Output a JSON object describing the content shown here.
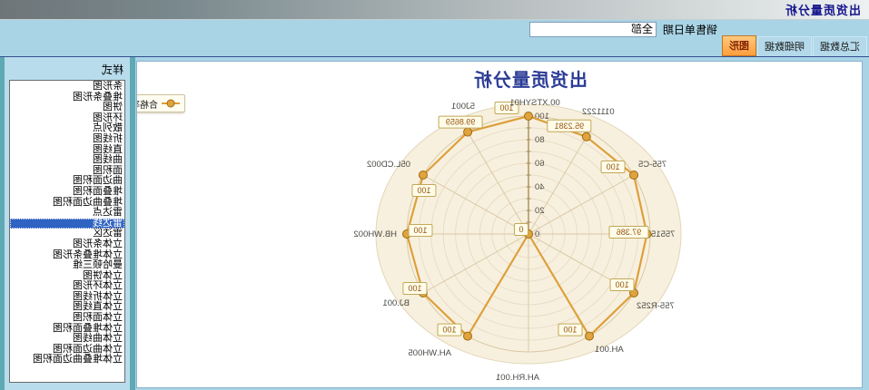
{
  "window": {
    "title": "出货质量分析"
  },
  "filter": {
    "label": "销售单日期",
    "value": "全部"
  },
  "tabs": [
    {
      "label": "汇总数据",
      "active": false
    },
    {
      "label": "明细数据",
      "active": false
    },
    {
      "label": "图形",
      "active": true
    }
  ],
  "style_panel": {
    "header": "样式",
    "selected_index": 13,
    "items": [
      "条形图",
      "堆叠条形图",
      "饼图",
      "环形图",
      "散列点",
      "折线图",
      "直线图",
      "曲线图",
      "面积图",
      "曲边面积图",
      "堆叠面积图",
      "堆叠曲边面积图",
      "雷达点",
      "雷达线",
      "雷达区",
      "立体条形图",
      "立体堆叠条形图",
      "曼哈顿三维",
      "立体饼图",
      "立体环形图",
      "立体折线图",
      "立体直线图",
      "立体面积图",
      "立体堆叠面积图",
      "立体曲线图",
      "立体曲边面积图",
      "立体堆叠曲边面积图"
    ]
  },
  "chart_data": {
    "type": "radar",
    "title": "出货质量分析",
    "legend": [
      "合格率%"
    ],
    "categories": [
      "00.XTSYH01",
      "0111222",
      "755-C5",
      "75515",
      "755-R252",
      "AH.001",
      "AH.RH.001",
      "AH.WH005",
      "BJ.001",
      "HB.WH002",
      "05L.CD002",
      "5J001"
    ],
    "series": [
      {
        "name": "合格率%",
        "values": [
          100,
          95.2381,
          100,
          97.386,
          100,
          100,
          0,
          100,
          100,
          100,
          100,
          99.8659
        ]
      }
    ],
    "rmin": 0,
    "rmax": 100,
    "ticks": [
      0,
      20,
      40,
      60,
      80,
      100
    ],
    "grid": true,
    "legend_position": "top-right",
    "colors": {
      "series": "#dd9f3b",
      "point_fill": "#e0a33e",
      "point_stroke": "#9e6c12",
      "plot_bg": "#f8f0de",
      "ring": "#e8ddc6",
      "axis": "#a98b58",
      "mark_bg": "#fffcea",
      "mark_border": "#c2a858",
      "mark_text": "#96570f",
      "title_color": "#2c3c96"
    }
  }
}
